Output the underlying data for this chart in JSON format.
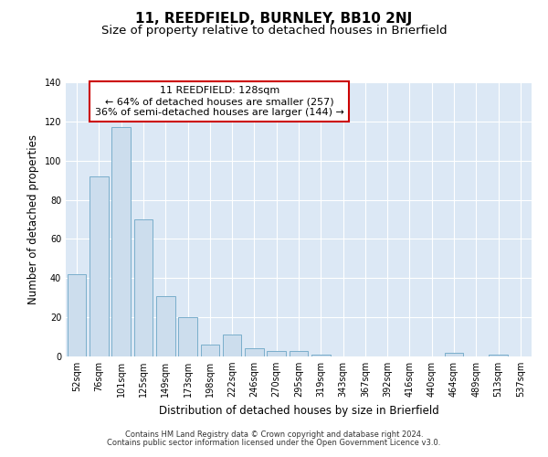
{
  "title": "11, REEDFIELD, BURNLEY, BB10 2NJ",
  "subtitle": "Size of property relative to detached houses in Brierfield",
  "xlabel": "Distribution of detached houses by size in Brierfield",
  "ylabel": "Number of detached properties",
  "categories": [
    "52sqm",
    "76sqm",
    "101sqm",
    "125sqm",
    "149sqm",
    "173sqm",
    "198sqm",
    "222sqm",
    "246sqm",
    "270sqm",
    "295sqm",
    "319sqm",
    "343sqm",
    "367sqm",
    "392sqm",
    "416sqm",
    "440sqm",
    "464sqm",
    "489sqm",
    "513sqm",
    "537sqm"
  ],
  "values": [
    42,
    92,
    117,
    70,
    31,
    20,
    6,
    11,
    4,
    3,
    3,
    1,
    0,
    0,
    0,
    0,
    0,
    2,
    0,
    1,
    0
  ],
  "bar_color": "#ccdded",
  "bar_edge_color": "#7aaecb",
  "annotation_text": "11 REEDFIELD: 128sqm\n← 64% of detached houses are smaller (257)\n36% of semi-detached houses are larger (144) →",
  "annotation_box_color": "#ffffff",
  "annotation_box_edge_color": "#cc0000",
  "ylim": [
    0,
    140
  ],
  "yticks": [
    0,
    20,
    40,
    60,
    80,
    100,
    120,
    140
  ],
  "plot_bg_color": "#dce8f5",
  "footer1": "Contains HM Land Registry data © Crown copyright and database right 2024.",
  "footer2": "Contains public sector information licensed under the Open Government Licence v3.0.",
  "title_fontsize": 11,
  "subtitle_fontsize": 9.5,
  "tick_fontsize": 7,
  "ylabel_fontsize": 8.5,
  "xlabel_fontsize": 8.5,
  "annotation_fontsize": 8,
  "footer_fontsize": 6
}
